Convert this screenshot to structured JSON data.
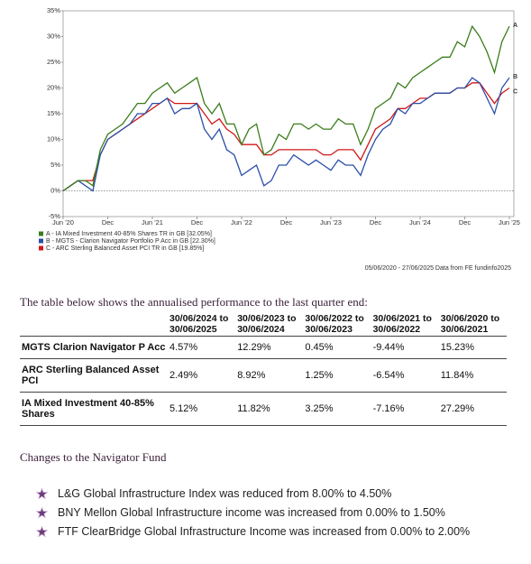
{
  "chart_data": {
    "type": "line",
    "categories": [
      "Jun '20",
      null,
      null,
      null,
      null,
      null,
      "Dec",
      null,
      null,
      null,
      null,
      null,
      "Jun '21",
      null,
      null,
      null,
      null,
      null,
      "Dec",
      null,
      null,
      null,
      null,
      null,
      "Jun '22",
      null,
      null,
      null,
      null,
      null,
      "Dec",
      null,
      null,
      null,
      null,
      null,
      "Jun '23",
      null,
      null,
      null,
      null,
      null,
      "Dec",
      null,
      null,
      null,
      null,
      null,
      "Jun '24",
      null,
      null,
      null,
      null,
      null,
      "Dec",
      null,
      null,
      null,
      null,
      null,
      "Jun '25"
    ],
    "series": [
      {
        "name": "A - IA Mixed Investment 40-85% Shares TR in GB [32.05%]",
        "end_label": "A",
        "color": "#3a7d1a",
        "values": [
          0,
          1,
          2,
          2,
          1,
          8,
          11,
          12,
          13,
          15,
          17,
          17,
          19,
          20,
          21,
          19,
          20,
          21,
          22,
          17,
          15,
          17,
          13,
          13,
          9,
          12,
          13,
          7,
          8,
          11,
          10,
          13,
          13,
          12,
          13,
          12,
          12,
          14,
          13,
          13,
          9,
          12,
          16,
          17,
          18,
          21,
          20,
          22,
          23,
          24,
          25,
          26,
          26,
          29,
          28,
          32,
          30,
          27,
          23,
          29,
          32
        ]
      },
      {
        "name": "B - MGTS - Clarion Navigator Portfolio P Acc in GB [22.30%]",
        "end_label": "B",
        "color": "#2a4fa8",
        "values": [
          0,
          1,
          2,
          1,
          0,
          7,
          10,
          11,
          12,
          13,
          15,
          15,
          17,
          17,
          18,
          15,
          16,
          16,
          17,
          12,
          10,
          12,
          8,
          7,
          3,
          4,
          5,
          1,
          2,
          5,
          5,
          7,
          6,
          5,
          6,
          5,
          4,
          6,
          5,
          5,
          3,
          7,
          10,
          12,
          13,
          16,
          15,
          17,
          17,
          18,
          19,
          19,
          19,
          20,
          20,
          22,
          21,
          18,
          15,
          20,
          22
        ]
      },
      {
        "name": "C - ARC Sterling Balanced Asset PCI TR in GB [19.85%]",
        "end_label": "C",
        "color": "#d01818",
        "values": [
          0,
          1,
          2,
          2,
          2,
          7,
          10,
          11,
          12,
          13,
          14,
          15,
          16,
          17,
          18,
          17,
          17,
          17,
          17,
          15,
          13,
          14,
          12,
          11,
          9,
          9,
          9,
          7,
          7,
          8,
          8,
          8,
          8,
          8,
          8,
          7,
          7,
          8,
          8,
          8,
          6,
          9,
          12,
          13,
          14,
          16,
          16,
          17,
          18,
          18,
          19,
          19,
          19,
          20,
          20,
          21,
          21,
          19,
          17,
          19,
          20
        ]
      }
    ],
    "ylim": [
      -5,
      35
    ],
    "yticks": [
      {
        "value": -5,
        "label": "-5%"
      },
      {
        "value": 0,
        "label": "0%"
      },
      {
        "value": 5,
        "label": "5%"
      },
      {
        "value": 10,
        "label": "10%"
      },
      {
        "value": 15,
        "label": "15%"
      },
      {
        "value": 20,
        "label": "20%"
      },
      {
        "value": 25,
        "label": "25%"
      },
      {
        "value": 30,
        "label": "30%"
      },
      {
        "value": 35,
        "label": "35%"
      }
    ],
    "source": "05/06/2020 - 27/06/2025 Data from FE fundinfo2025"
  },
  "caption": "The table below shows the annualised performance to the last quarter end:",
  "table": {
    "header": [
      "30/06/2024 to 30/06/2025",
      "30/06/2023 to 30/06/2024",
      "30/06/2022 to 30/06/2023",
      "30/06/2021 to 30/06/2022",
      "30/06/2020 to 30/06/2021"
    ],
    "rows": [
      [
        "MGTS Clarion Navigator P Acc",
        "4.57%",
        "12.29%",
        "0.45%",
        "-9.44%",
        "15.23%"
      ],
      [
        "ARC Sterling Balanced Asset PCI",
        "2.49%",
        "8.92%",
        "1.25%",
        "-6.54%",
        "11.84%"
      ],
      [
        "IA Mixed Investment 40-85% Shares",
        "5.12%",
        "11.82%",
        "3.25%",
        "-7.16%",
        "27.29%"
      ]
    ]
  },
  "changes": {
    "title": "Changes to the Navigator Fund",
    "items": [
      "L&G Global Infrastructure Index was reduced from 8.00% to 4.50%",
      "BNY Mellon Global Infrastructure income was increased from 0.00% to 1.50%",
      "FTF ClearBridge Global Infrastructure Income was increased from 0.00% to 2.00%"
    ]
  }
}
